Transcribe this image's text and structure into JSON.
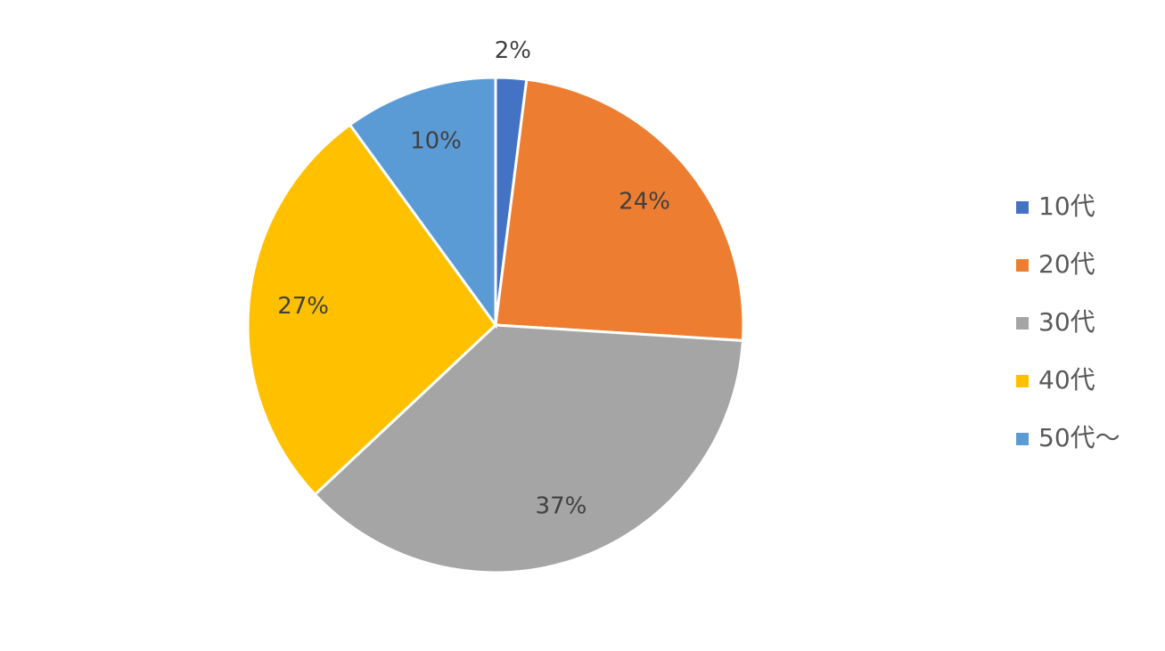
{
  "chart_data": {
    "type": "pie",
    "categories": [
      "10代",
      "20代",
      "30代",
      "40代",
      "50代～"
    ],
    "values": [
      2,
      24,
      37,
      27,
      10
    ],
    "value_labels": [
      "2%",
      "24%",
      "37%",
      "27%",
      "10%"
    ],
    "colors": [
      "#4472c4",
      "#ed7d31",
      "#a5a5a5",
      "#ffc000",
      "#5b9bd5"
    ],
    "legend": "right"
  }
}
